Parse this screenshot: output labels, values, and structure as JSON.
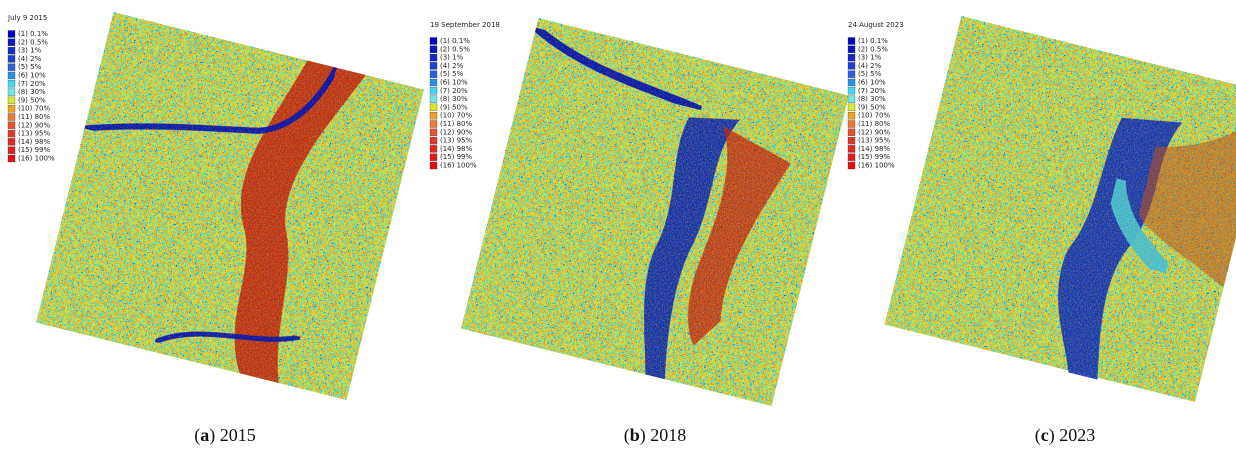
{
  "legend": {
    "labels": [
      "(1) 0.1%",
      "(2) 0.5%",
      "(3) 1%",
      "(4) 2%",
      "(5) 5%",
      "(6) 10%",
      "(7) 20%",
      "(8) 30%",
      "(9) 50%",
      "(10) 70%",
      "(11) 80%",
      "(12) 90%",
      "(13) 95%",
      "(14) 98%",
      "(15) 99%",
      "(16) 100%"
    ],
    "colors": [
      "#0000c0",
      "#0a14c8",
      "#1428d0",
      "#1e40d8",
      "#2860e0",
      "#2a90ea",
      "#40d8f0",
      "#70e8e0",
      "#d8e830",
      "#f0a020",
      "#f07830",
      "#e85030",
      "#e03828",
      "#e02820",
      "#e01c1c",
      "#e01010"
    ]
  },
  "panels": [
    {
      "title": "July 9 2015",
      "caption": {
        "prefix": "(",
        "label": "a",
        "suffix": ") 2015"
      }
    },
    {
      "title": "19 September 2018",
      "caption": {
        "prefix": "(",
        "label": "b",
        "suffix": ") 2018"
      }
    },
    {
      "title": "24 August 2023",
      "caption": {
        "prefix": "(",
        "label": "c",
        "suffix": ") 2023"
      }
    }
  ]
}
